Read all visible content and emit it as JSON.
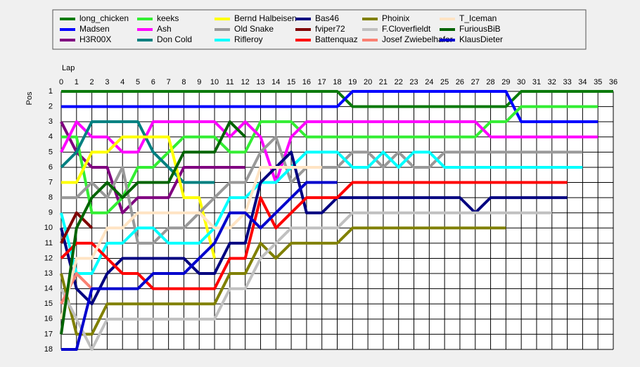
{
  "chart_data": {
    "type": "line",
    "x_label": "Lap",
    "y_label": "Pos",
    "x": [
      0,
      1,
      2,
      3,
      4,
      5,
      6,
      7,
      8,
      9,
      10,
      11,
      12,
      13,
      14,
      15,
      16,
      17,
      18,
      19,
      20,
      21,
      22,
      23,
      24,
      25,
      26,
      27,
      28,
      29,
      30,
      31,
      32,
      33,
      34,
      35,
      36
    ],
    "xlim": [
      0,
      36
    ],
    "xticks": [
      0,
      1,
      2,
      3,
      4,
      5,
      6,
      7,
      8,
      9,
      10,
      11,
      12,
      13,
      14,
      15,
      16,
      17,
      18,
      19,
      20,
      21,
      22,
      23,
      24,
      25,
      26,
      27,
      28,
      29,
      30,
      31,
      32,
      33,
      34,
      35,
      36
    ],
    "ylim": [
      1,
      18
    ],
    "y_inverted": true,
    "yticks": [
      1,
      2,
      3,
      4,
      5,
      6,
      7,
      8,
      9,
      10,
      11,
      12,
      13,
      14,
      15,
      16,
      17,
      18
    ],
    "grid": true,
    "series": [
      {
        "name": "long_chicken",
        "color": "#0a7a0a",
        "values": [
          1,
          1,
          1,
          1,
          1,
          1,
          1,
          1,
          1,
          1,
          1,
          1,
          1,
          1,
          1,
          1,
          1,
          1,
          1,
          2,
          2,
          2,
          2,
          2,
          2,
          2,
          2,
          2,
          2,
          2,
          1,
          1,
          1,
          1,
          1,
          1,
          1
        ]
      },
      {
        "name": "Madsen",
        "color": "#0000ff",
        "values": [
          2,
          2,
          2,
          2,
          2,
          2,
          2,
          2,
          2,
          2,
          2,
          2,
          2,
          2,
          2,
          2,
          2,
          2,
          2,
          1,
          1,
          1,
          1,
          1,
          1,
          1,
          1,
          1,
          1,
          1,
          3,
          3,
          3,
          3,
          3,
          3,
          null
        ]
      },
      {
        "name": "H3R00X",
        "color": "#800080",
        "values": [
          3,
          5,
          6,
          6,
          9,
          8,
          8,
          8,
          6,
          6,
          6,
          6,
          6,
          null,
          null,
          null,
          null,
          null,
          null,
          null,
          null,
          null,
          null,
          null,
          null,
          null,
          null,
          null,
          null,
          null,
          null,
          null,
          null,
          null,
          null,
          null,
          null
        ]
      },
      {
        "name": "keeks",
        "color": "#33ee33",
        "values": [
          4,
          4,
          9,
          9,
          8,
          6,
          6,
          5,
          4,
          4,
          4,
          5,
          5,
          3,
          3,
          3,
          4,
          4,
          4,
          4,
          4,
          4,
          4,
          4,
          4,
          4,
          4,
          4,
          3,
          3,
          2,
          2,
          2,
          2,
          2,
          2,
          null
        ]
      },
      {
        "name": "Ash",
        "color": "#ff00ff",
        "values": [
          5,
          3,
          4,
          4,
          5,
          5,
          3,
          3,
          3,
          3,
          3,
          4,
          3,
          4,
          7,
          4,
          3,
          3,
          3,
          3,
          3,
          3,
          3,
          3,
          3,
          3,
          3,
          3,
          4,
          4,
          4,
          4,
          4,
          4,
          4,
          4,
          null
        ]
      },
      {
        "name": "Don Cold",
        "color": "#008080",
        "values": [
          6,
          5,
          3,
          3,
          3,
          3,
          5,
          6,
          7,
          7,
          7,
          null,
          null,
          null,
          null,
          null,
          null,
          null,
          null,
          null,
          null,
          null,
          null,
          null,
          null,
          null,
          null,
          null,
          null,
          null,
          null,
          null,
          null,
          null,
          null,
          null,
          null
        ]
      },
      {
        "name": "Bernd Halbeisen",
        "color": "#ffff00",
        "values": [
          7,
          7,
          5,
          5,
          4,
          4,
          4,
          4,
          8,
          8,
          12,
          null,
          null,
          null,
          null,
          null,
          null,
          null,
          null,
          null,
          null,
          null,
          null,
          null,
          null,
          null,
          null,
          null,
          null,
          null,
          null,
          null,
          null,
          null,
          null,
          null,
          null
        ]
      },
      {
        "name": "Old Snake",
        "color": "#999999",
        "values": [
          8,
          8,
          7,
          8,
          6,
          11,
          11,
          10,
          10,
          9,
          8,
          7,
          7,
          5,
          4,
          7,
          6,
          6,
          6,
          5,
          5,
          6,
          5,
          6,
          6,
          5,
          5,
          5,
          5,
          5,
          5,
          5,
          5,
          5,
          5,
          null,
          null
        ]
      },
      {
        "name": "Rifleroy",
        "color": "#00ffff",
        "values": [
          9,
          13,
          13,
          11,
          11,
          10,
          10,
          11,
          11,
          11,
          10,
          8,
          8,
          7,
          7,
          6,
          5,
          5,
          5,
          6,
          6,
          5,
          6,
          5,
          5,
          6,
          6,
          6,
          6,
          6,
          6,
          6,
          6,
          6,
          6,
          null,
          null
        ]
      },
      {
        "name": "Bas46",
        "color": "#000080",
        "values": [
          10,
          14,
          15,
          13,
          12,
          12,
          12,
          12,
          12,
          13,
          13,
          11,
          11,
          7,
          6,
          5,
          9,
          9,
          8,
          8,
          8,
          8,
          8,
          8,
          8,
          8,
          8,
          9,
          8,
          8,
          8,
          8,
          8,
          8,
          null,
          null,
          null
        ]
      },
      {
        "name": "fviper72",
        "color": "#800000",
        "values": [
          11,
          9,
          10,
          null,
          null,
          null,
          null,
          null,
          null,
          null,
          null,
          null,
          null,
          null,
          null,
          null,
          null,
          null,
          null,
          null,
          null,
          null,
          null,
          null,
          null,
          null,
          null,
          null,
          null,
          null,
          null,
          null,
          null,
          null,
          null,
          null,
          null
        ]
      },
      {
        "name": "Battenquaz",
        "color": "#ff0000",
        "values": [
          12,
          11,
          11,
          12,
          13,
          13,
          14,
          14,
          14,
          14,
          14,
          12,
          12,
          8,
          10,
          9,
          8,
          8,
          8,
          7,
          7,
          7,
          7,
          7,
          7,
          7,
          7,
          7,
          7,
          7,
          7,
          7,
          7,
          7,
          null,
          null,
          null
        ]
      },
      {
        "name": "Phoinix",
        "color": "#808000",
        "values": [
          13,
          17,
          17,
          15,
          15,
          15,
          15,
          15,
          15,
          15,
          15,
          13,
          13,
          11,
          12,
          11,
          11,
          11,
          11,
          10,
          10,
          10,
          10,
          10,
          10,
          10,
          10,
          10,
          10,
          10,
          null,
          null,
          null,
          null,
          null,
          null,
          null
        ]
      },
      {
        "name": "F.Cloverfieldt",
        "color": "#c0c0c0",
        "values": [
          14,
          16,
          18,
          16,
          16,
          16,
          16,
          16,
          16,
          16,
          16,
          14,
          14,
          12,
          11,
          10,
          10,
          10,
          10,
          9,
          9,
          9,
          9,
          9,
          9,
          9,
          9,
          9,
          9,
          9,
          9,
          9,
          9,
          null,
          null,
          null,
          null
        ]
      },
      {
        "name": "Josef Zwiebelhafer",
        "color": "#fa8072",
        "values": [
          15,
          13,
          14,
          null,
          null,
          null,
          null,
          null,
          null,
          null,
          null,
          null,
          null,
          null,
          null,
          null,
          null,
          null,
          null,
          null,
          null,
          null,
          null,
          null,
          null,
          null,
          null,
          null,
          null,
          null,
          null,
          null,
          null,
          null,
          null,
          null,
          null
        ]
      },
      {
        "name": "T_Iceman",
        "color": "#ffe4c4",
        "values": [
          16,
          12,
          12,
          10,
          10,
          9,
          9,
          9,
          9,
          9,
          10,
          10,
          9,
          6,
          6,
          6,
          6,
          6,
          null,
          null,
          null,
          null,
          null,
          null,
          null,
          null,
          null,
          null,
          null,
          null,
          null,
          null,
          null,
          null,
          null,
          null,
          null
        ]
      },
      {
        "name": "FuriousBiB",
        "color": "#006400",
        "values": [
          17,
          10,
          8,
          7,
          8,
          7,
          7,
          7,
          5,
          5,
          5,
          3,
          4,
          null,
          null,
          null,
          null,
          null,
          null,
          null,
          null,
          null,
          null,
          null,
          null,
          null,
          null,
          null,
          null,
          null,
          null,
          null,
          null,
          null,
          null,
          null,
          null
        ]
      },
      {
        "name": "KlausDieter",
        "color": "#0000cd",
        "values": [
          18,
          18,
          14,
          14,
          14,
          14,
          13,
          13,
          13,
          12,
          11,
          9,
          9,
          10,
          9,
          8,
          7,
          7,
          7,
          null,
          null,
          null,
          null,
          null,
          null,
          null,
          null,
          null,
          null,
          null,
          null,
          null,
          null,
          null,
          null,
          null,
          null
        ]
      }
    ]
  }
}
